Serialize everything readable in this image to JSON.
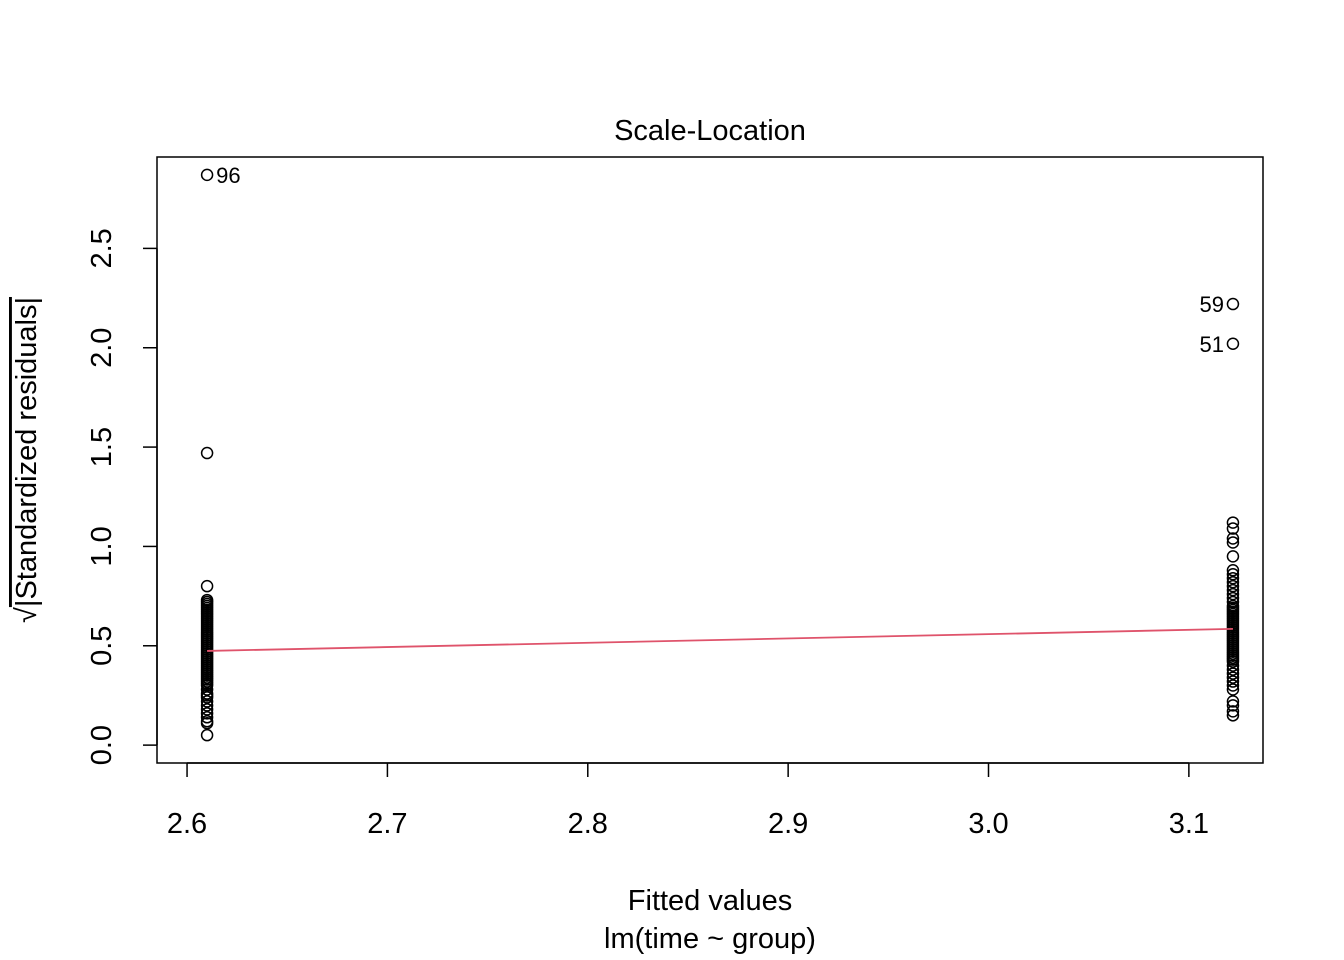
{
  "chart_data": {
    "type": "scatter",
    "title": "Scale-Location",
    "xlabel": "Fitted values",
    "subtitle": "lm(time ~ group)",
    "ylabel_prefix": "√",
    "ylabel": "|Standardized residuals|",
    "xlim": [
      2.585,
      3.137
    ],
    "ylim": [
      -0.09,
      2.96
    ],
    "xticks": [
      "2.6",
      "2.7",
      "2.8",
      "2.9",
      "3.0",
      "3.1"
    ],
    "yticks": [
      "0.0",
      "0.5",
      "1.0",
      "1.5",
      "2.0",
      "2.5"
    ],
    "grid": false,
    "colors": {
      "points": "#000000",
      "smooth": "#DF536B",
      "frame": "#000000"
    },
    "series": [
      {
        "x": 2.61,
        "values": [
          2.87,
          1.47,
          0.8,
          0.73,
          0.72,
          0.71,
          0.7,
          0.69,
          0.68,
          0.67,
          0.66,
          0.65,
          0.64,
          0.63,
          0.62,
          0.61,
          0.6,
          0.59,
          0.58,
          0.57,
          0.56,
          0.55,
          0.54,
          0.53,
          0.52,
          0.51,
          0.5,
          0.49,
          0.48,
          0.47,
          0.46,
          0.45,
          0.44,
          0.43,
          0.42,
          0.41,
          0.4,
          0.39,
          0.38,
          0.37,
          0.36,
          0.35,
          0.34,
          0.33,
          0.32,
          0.31,
          0.3,
          0.28,
          0.26,
          0.25,
          0.24,
          0.22,
          0.2,
          0.18,
          0.16,
          0.14,
          0.12,
          0.11,
          0.05
        ]
      },
      {
        "x": 3.122,
        "values": [
          2.22,
          2.02,
          1.12,
          1.09,
          1.04,
          1.02,
          0.95,
          0.88,
          0.86,
          0.84,
          0.82,
          0.8,
          0.78,
          0.76,
          0.74,
          0.72,
          0.7,
          0.69,
          0.68,
          0.67,
          0.66,
          0.65,
          0.64,
          0.63,
          0.62,
          0.61,
          0.6,
          0.59,
          0.58,
          0.57,
          0.56,
          0.55,
          0.54,
          0.53,
          0.52,
          0.51,
          0.5,
          0.49,
          0.48,
          0.47,
          0.46,
          0.45,
          0.44,
          0.43,
          0.42,
          0.4,
          0.38,
          0.36,
          0.34,
          0.32,
          0.3,
          0.28,
          0.22,
          0.2,
          0.17,
          0.15
        ]
      }
    ],
    "smooth_line": {
      "x": [
        2.61,
        3.122
      ],
      "y": [
        0.474,
        0.585
      ]
    },
    "annotations": [
      {
        "text": "96",
        "x": 2.61,
        "y": 2.87,
        "side": "right"
      },
      {
        "text": "59",
        "x": 3.122,
        "y": 2.22,
        "side": "left"
      },
      {
        "text": "51",
        "x": 3.122,
        "y": 2.02,
        "side": "left"
      }
    ]
  }
}
